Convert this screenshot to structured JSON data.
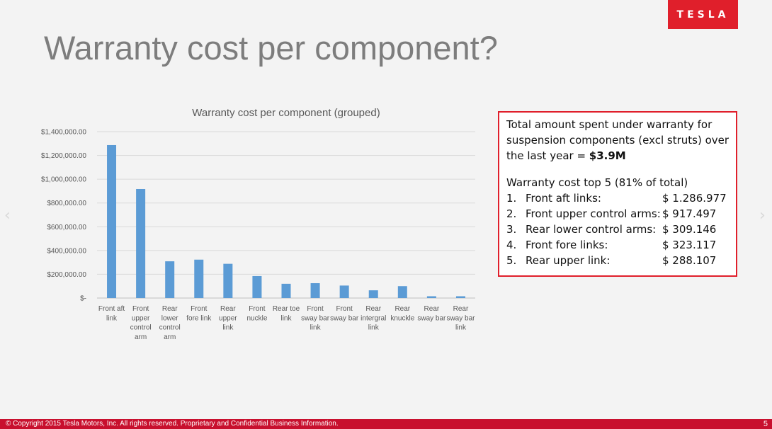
{
  "slide": {
    "logo_text": "TESLA",
    "title": "Warranty cost per component?",
    "footer_text": "© Copyright 2015 Tesla Motors, Inc. All rights reserved. Proprietary and Confidential Business Information.",
    "page_number": "5",
    "nav_left": "‹",
    "nav_right": "›"
  },
  "callout": {
    "line1": "Total amount spent under warranty for",
    "line2": "suspension components (excl struts) over",
    "line3_prefix": "the last year = ",
    "line3_value": "$3.9M",
    "top5_heading": "Warranty cost top 5 (81% of total)",
    "items": [
      {
        "num": "1.",
        "label": "Front aft links:",
        "value": "$ 1.286.977"
      },
      {
        "num": "2.",
        "label": "Front upper control arms:",
        "value": "$ 917.497"
      },
      {
        "num": "3.",
        "label": "Rear lower control arms:",
        "value": "$ 309.146"
      },
      {
        "num": "4.",
        "label": "Front fore links:",
        "value": "$ 323.117"
      },
      {
        "num": "5.",
        "label": "Rear upper link:",
        "value": "$ 288.107"
      }
    ]
  },
  "colors": {
    "bar": "#5b9bd5",
    "accent": "#e01f2b"
  },
  "chart_data": {
    "type": "bar",
    "title": "Warranty cost per component (grouped)",
    "categories": [
      [
        "Front aft",
        "link"
      ],
      [
        "Front",
        "upper",
        "control",
        "arm"
      ],
      [
        "Rear",
        "lower",
        "control",
        "arm"
      ],
      [
        "Front",
        "fore link"
      ],
      [
        "Rear",
        "upper",
        "link"
      ],
      [
        "Front",
        "nuckle"
      ],
      [
        "Rear toe",
        "link"
      ],
      [
        "Front",
        "sway bar",
        "link"
      ],
      [
        "Front",
        "sway bar"
      ],
      [
        "Rear",
        "intergral",
        "link"
      ],
      [
        "Rear",
        "knuckle"
      ],
      [
        "Rear",
        "sway bar"
      ],
      [
        "Rear",
        "sway bar",
        "link"
      ]
    ],
    "values": [
      1286977,
      917497,
      309146,
      323117,
      288107,
      185000,
      120000,
      125000,
      105000,
      65000,
      100000,
      15000,
      15000
    ],
    "ylim": [
      0,
      1400000
    ],
    "yticks": [
      0,
      200000,
      400000,
      600000,
      800000,
      1000000,
      1200000,
      1400000
    ],
    "ytick_labels": [
      "$-",
      "$200,000.00",
      "$400,000.00",
      "$600,000.00",
      "$800,000.00",
      "$1,000,000.00",
      "$1,200,000.00",
      "$1,400,000.00"
    ],
    "grid": true,
    "legend": "none"
  }
}
